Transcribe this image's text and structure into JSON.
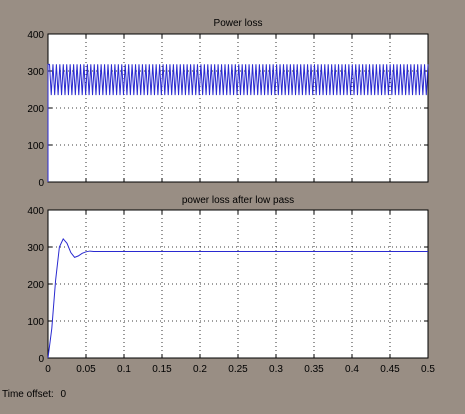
{
  "chart_data": [
    {
      "type": "line",
      "title": "Power loss",
      "xlabel": "",
      "ylabel": "",
      "xlim": [
        0,
        0.5
      ],
      "ylim": [
        0,
        400
      ],
      "x_ticks": [
        0,
        0.05,
        0.1,
        0.15,
        0.2,
        0.25,
        0.3,
        0.35,
        0.4,
        0.45,
        0.5
      ],
      "y_ticks": [
        0,
        100,
        200,
        300,
        400
      ],
      "y_tick_labels": [
        "0",
        "100",
        "200",
        "300",
        "400"
      ],
      "grid": true,
      "series": [
        {
          "color": "#2a2ad0",
          "description_values": {
            "initial": 0,
            "oscillation_min": 235,
            "oscillation_max": 318,
            "mean": 288
          },
          "oscillation": {
            "t_start": 0.002,
            "min": 235,
            "max": 318,
            "cycles": 110
          }
        }
      ]
    },
    {
      "type": "line",
      "title": "power loss after low pass",
      "xlabel": "",
      "ylabel": "",
      "xlim": [
        0,
        0.5
      ],
      "ylim": [
        0,
        400
      ],
      "x_ticks": [
        0,
        0.05,
        0.1,
        0.15,
        0.2,
        0.25,
        0.3,
        0.35,
        0.4,
        0.45,
        0.5
      ],
      "x_tick_labels": [
        "0",
        "0.05",
        "0.1",
        "0.15",
        "0.2",
        "0.25",
        "0.3",
        "0.35",
        "0.4",
        "0.45",
        "0.5"
      ],
      "y_ticks": [
        0,
        100,
        200,
        300,
        400
      ],
      "y_tick_labels": [
        "0",
        "100",
        "200",
        "300",
        "400"
      ],
      "grid": true,
      "series": [
        {
          "color": "#2a2ad0",
          "x": [
            0,
            0.005,
            0.01,
            0.015,
            0.02,
            0.025,
            0.03,
            0.035,
            0.04,
            0.045,
            0.05,
            0.055,
            0.06,
            0.07,
            0.08,
            0.1,
            0.2,
            0.3,
            0.4,
            0.5
          ],
          "y": [
            0,
            80,
            210,
            300,
            322,
            310,
            285,
            272,
            276,
            283,
            287,
            289,
            288,
            288,
            288,
            288,
            288,
            288,
            288,
            288
          ]
        }
      ]
    }
  ],
  "footer": {
    "time_offset_label": "Time offset:",
    "time_offset_value": "0"
  }
}
